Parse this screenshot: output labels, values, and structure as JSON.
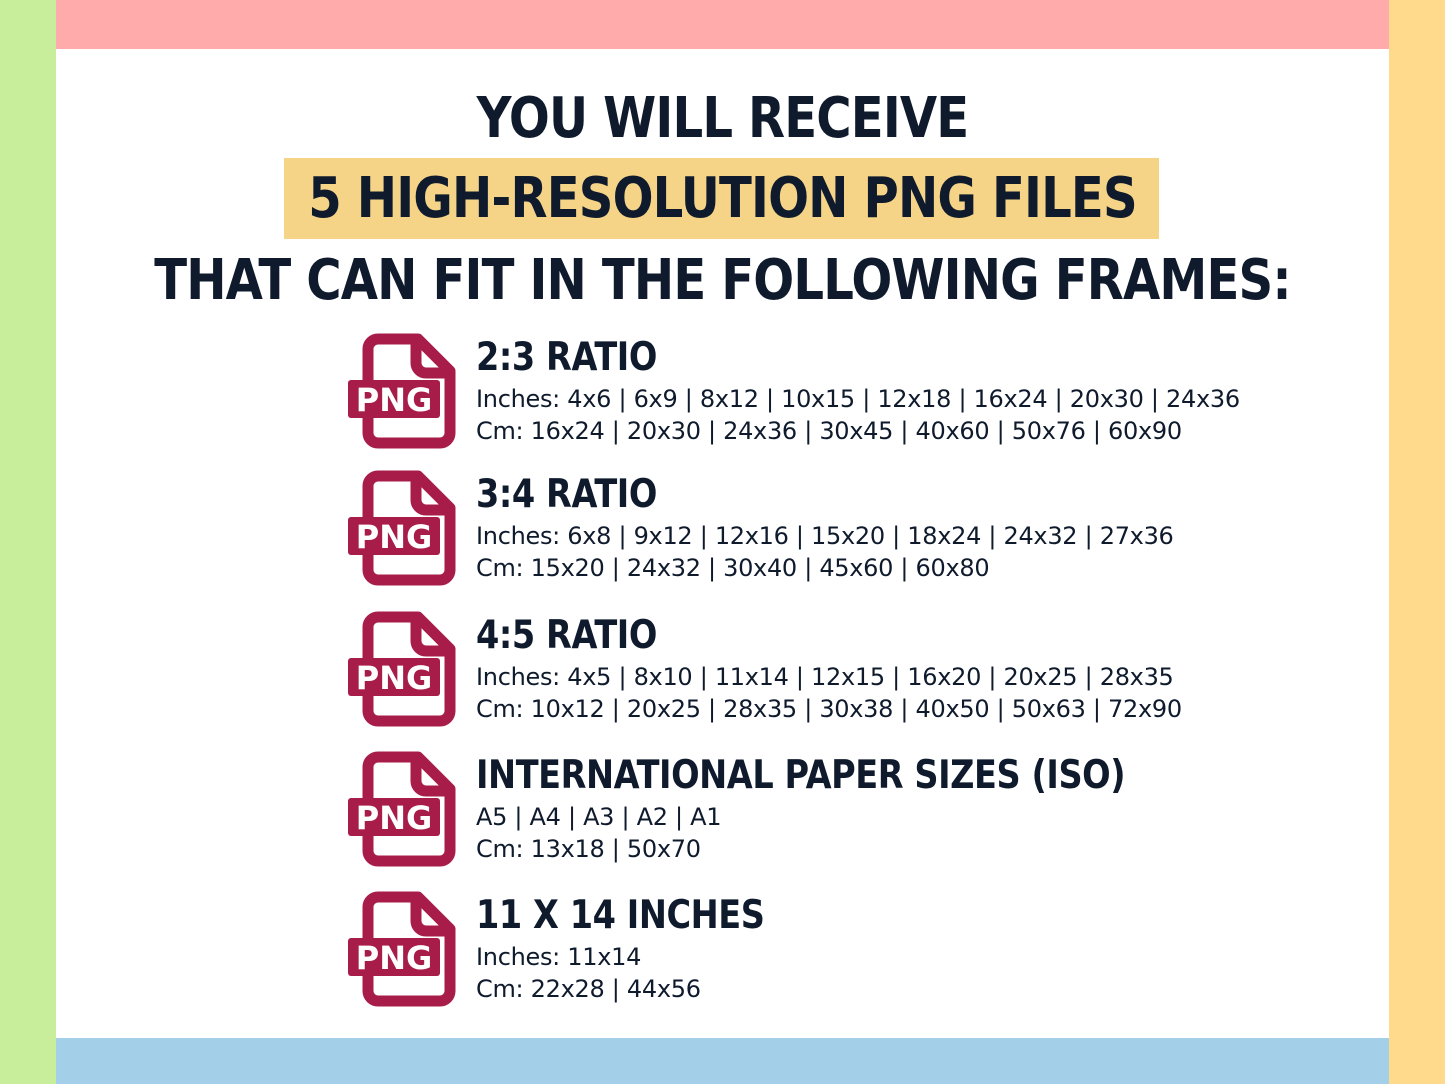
{
  "colors": {
    "top": "#ffabac",
    "bottom": "#a3d0e8",
    "left": "#c9ee9b",
    "right": "#ffd98c",
    "highlight": "#f5d488",
    "icon": "#a81c4a",
    "text": "#0f1b2d"
  },
  "heading": {
    "line1": "YOU WILL RECEIVE",
    "line2": "5 HIGH-RESOLUTION PNG FILES",
    "line3": "THAT CAN FIT IN THE FOLLOWING FRAMES:"
  },
  "icon_label": "PNG",
  "items": [
    {
      "title": "2:3 RATIO",
      "line1": "Inches: 4x6 | 6x9 | 8x12 | 10x15 | 12x18 | 16x24 | 20x30 | 24x36",
      "line2": "Cm: 16x24 | 20x30 | 24x36 | 30x45 | 40x60 | 50x76 | 60x90"
    },
    {
      "title": "3:4 RATIO",
      "line1": "Inches: 6x8 | 9x12 | 12x16 | 15x20 | 18x24 | 24x32 | 27x36",
      "line2": "Cm: 15x20 | 24x32 | 30x40 | 45x60 | 60x80"
    },
    {
      "title": "4:5 RATIO",
      "line1": "Inches: 4x5 | 8x10 | 11x14 | 12x15 | 16x20 | 20x25 | 28x35",
      "line2": "Cm: 10x12 | 20x25 | 28x35 | 30x38 | 40x50 | 50x63 | 72x90"
    },
    {
      "title": "INTERNATIONAL PAPER SIZES (ISO)",
      "line1": "A5 | A4 | A3 | A2 | A1",
      "line2": "Cm: 13x18 | 50x70"
    },
    {
      "title": "11 X 14 INCHES",
      "line1": "Inches: 11x14",
      "line2": "Cm: 22x28 | 44x56"
    }
  ]
}
